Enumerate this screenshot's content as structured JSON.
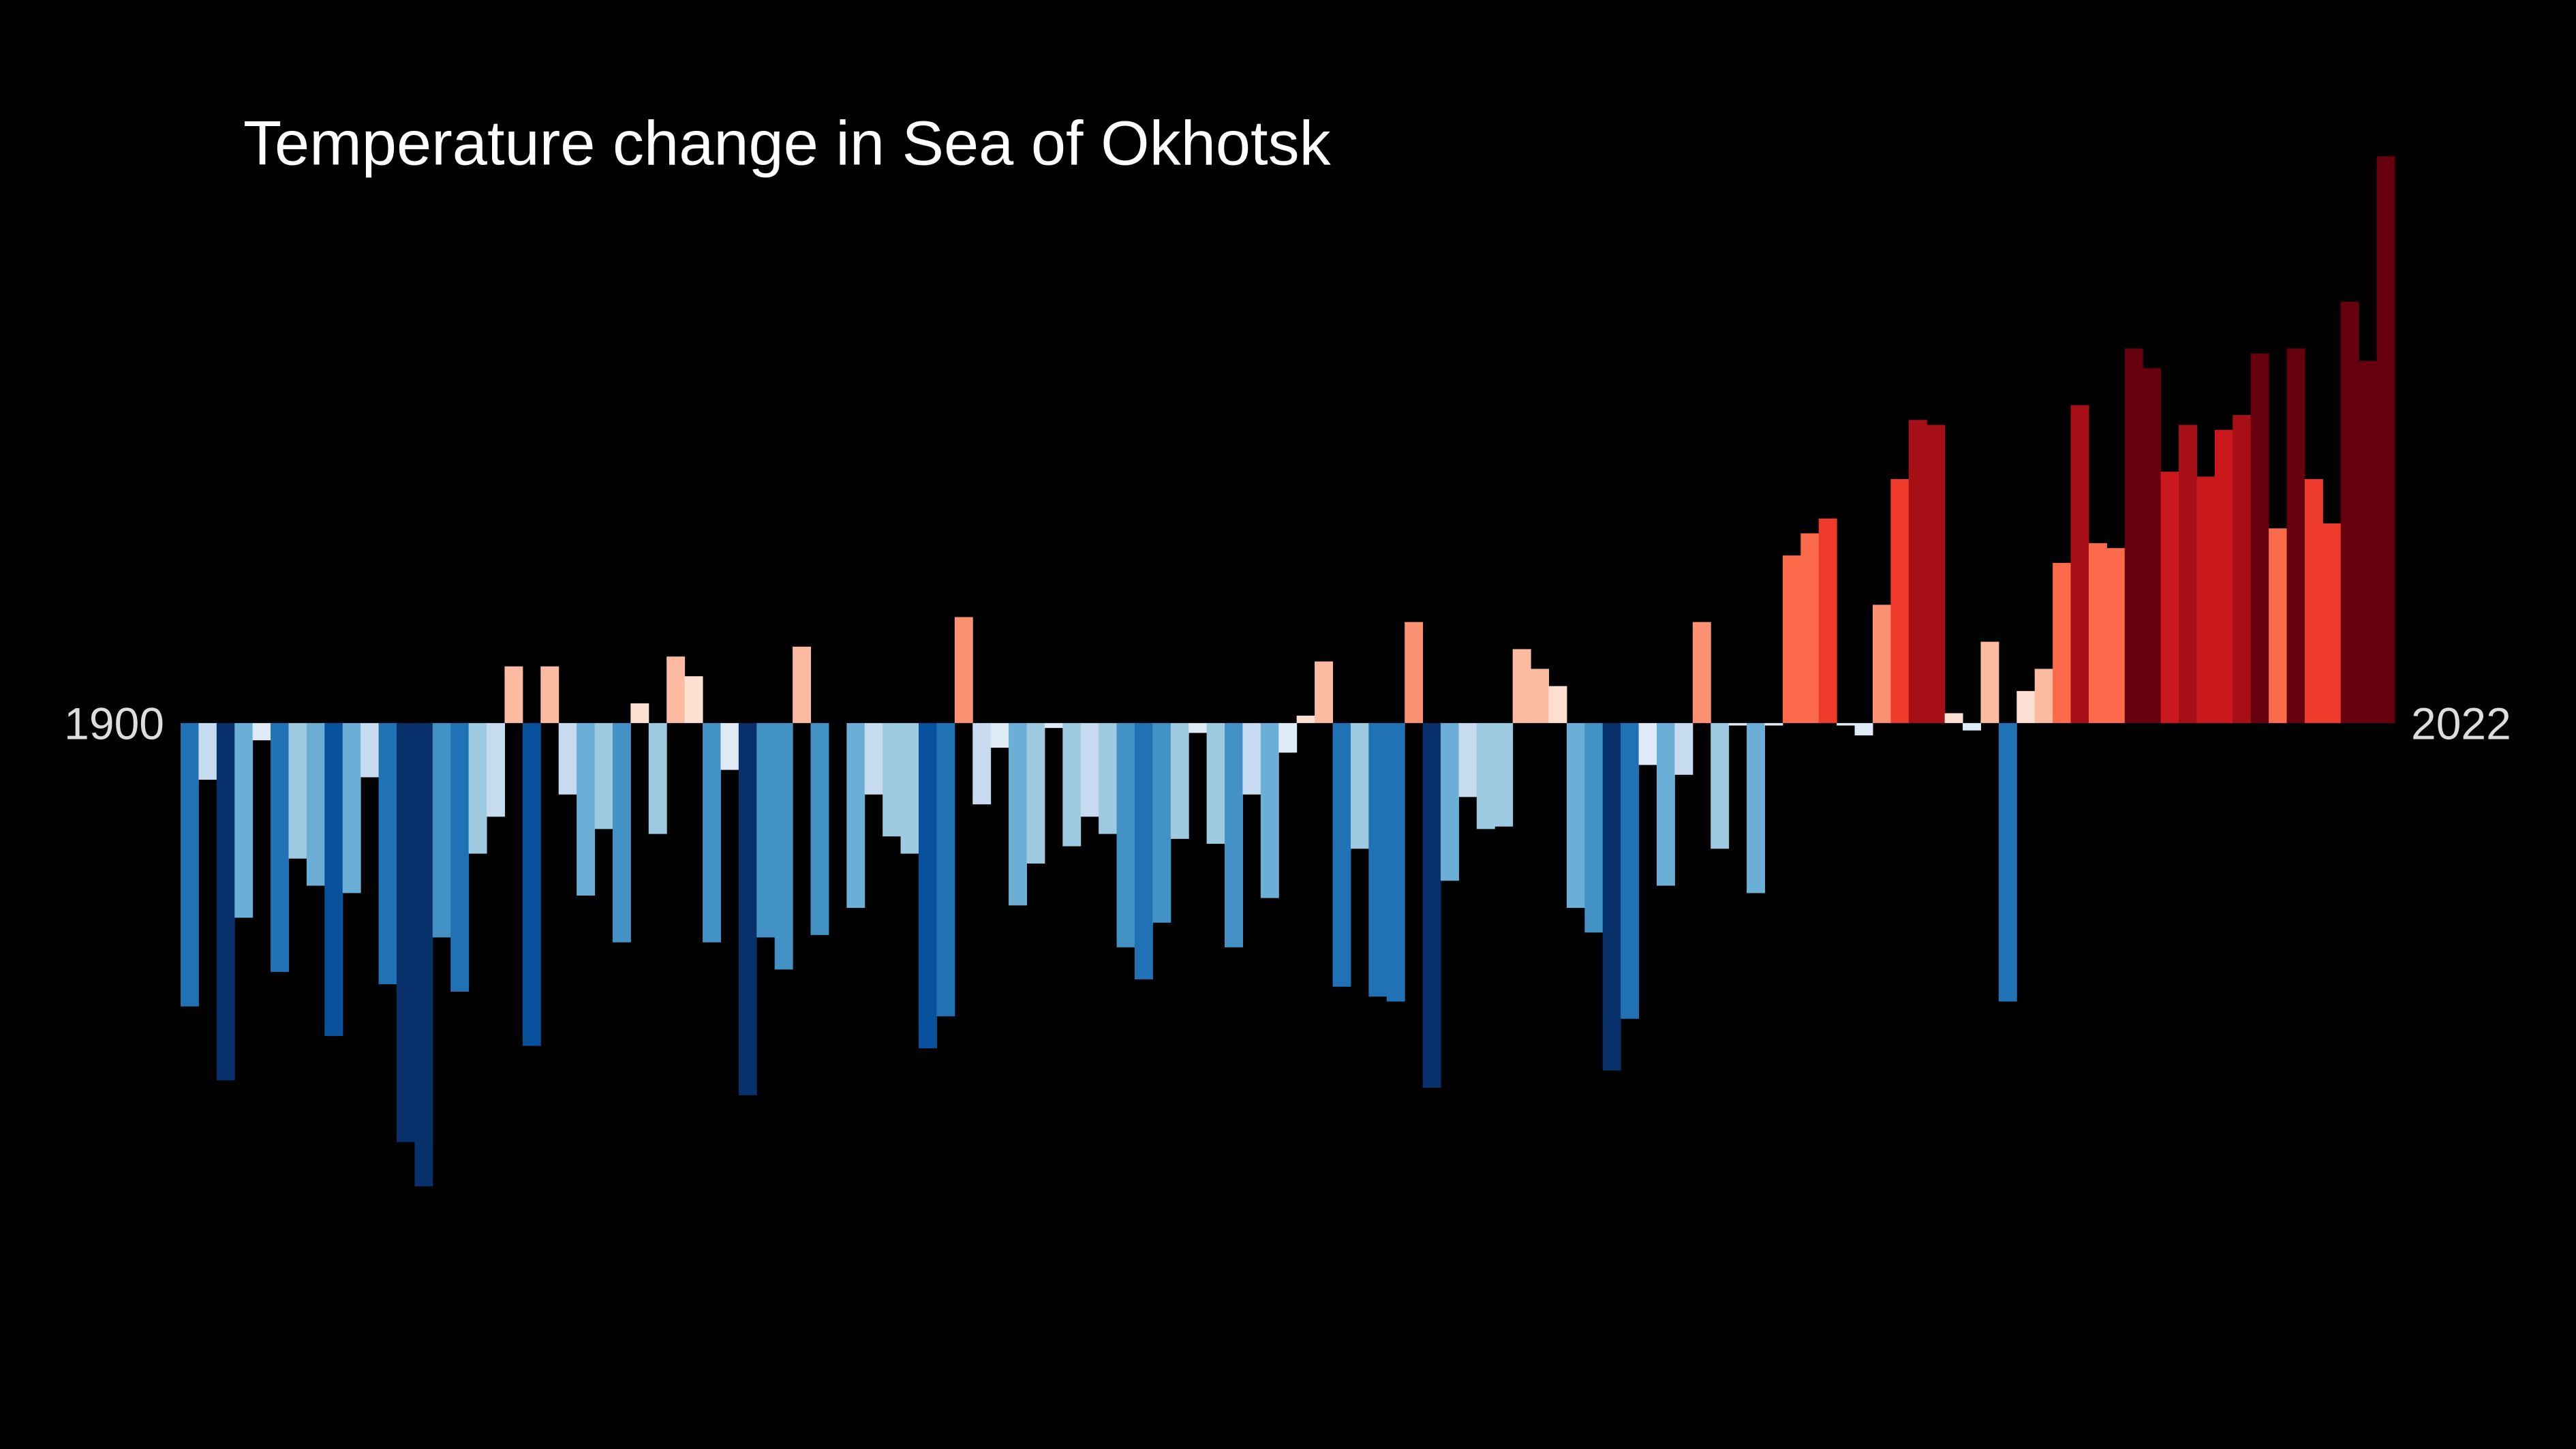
{
  "chart_data": {
    "type": "bar",
    "title": "Temperature change in Sea of Okhotsk",
    "categories": [
      "1900",
      null,
      null,
      null,
      null,
      null,
      null,
      null,
      null,
      null,
      null,
      null,
      null,
      null,
      null,
      null,
      null,
      null,
      null,
      null,
      null,
      null,
      null,
      null,
      null,
      null,
      null,
      null,
      null,
      null,
      null,
      null,
      null,
      null,
      null,
      null,
      null,
      null,
      null,
      null,
      null,
      null,
      null,
      null,
      null,
      null,
      null,
      null,
      null,
      null,
      null,
      null,
      null,
      null,
      null,
      null,
      null,
      null,
      null,
      null,
      null,
      null,
      null,
      null,
      null,
      null,
      null,
      null,
      null,
      null,
      null,
      null,
      null,
      null,
      null,
      null,
      null,
      null,
      null,
      null,
      null,
      null,
      null,
      null,
      null,
      null,
      null,
      null,
      null,
      null,
      null,
      null,
      null,
      null,
      null,
      null,
      null,
      null,
      null,
      null,
      null,
      null,
      null,
      null,
      null,
      null,
      null,
      null,
      null,
      null,
      null,
      null,
      null,
      null,
      null,
      null,
      null,
      null,
      null,
      null,
      null,
      null,
      "2022"
    ],
    "values": [
      -1.15,
      -0.23,
      -1.45,
      -0.79,
      -0.07,
      -1.01,
      -0.55,
      -0.66,
      -1.27,
      -0.69,
      -0.22,
      -1.06,
      -1.7,
      -1.88,
      -0.87,
      -1.09,
      -0.53,
      -0.38,
      0.23,
      -1.31,
      0.23,
      -0.29,
      -0.7,
      -0.43,
      -0.89,
      0.08,
      -0.45,
      0.27,
      0.19,
      -0.89,
      -0.19,
      -1.51,
      -0.87,
      -1.0,
      0.31,
      -0.86,
      0,
      -0.75,
      -0.29,
      -0.46,
      -0.53,
      -1.32,
      -1.19,
      0.43,
      -0.33,
      -0.1,
      -0.74,
      -0.57,
      -0.02,
      -0.5,
      -0.38,
      -0.45,
      -0.91,
      -1.04,
      -0.81,
      -0.47,
      -0.04,
      -0.49,
      -0.91,
      -0.29,
      -0.71,
      -0.12,
      0.03,
      0.25,
      -1.07,
      -0.51,
      -1.11,
      -1.13,
      0.41,
      -1.48,
      -0.64,
      -0.3,
      -0.43,
      -0.42,
      0.3,
      0.22,
      0.15,
      -0.75,
      -0.85,
      -1.41,
      -1.2,
      -0.17,
      -0.66,
      -0.21,
      0.41,
      -0.51,
      -0.01,
      -0.69,
      -0.01,
      0.68,
      0.77,
      0.83,
      -0.01,
      -0.05,
      0.48,
      0.99,
      1.23,
      1.21,
      0.04,
      -0.03,
      0.33,
      -1.13,
      0.13,
      0.22,
      0.65,
      1.29,
      0.73,
      0.71,
      1.52,
      1.44,
      1.02,
      1.21,
      1.0,
      1.19,
      1.25,
      1.5,
      0.79,
      1.52,
      0.99,
      0.81,
      1.71,
      1.47,
      2.3
    ],
    "ylim": [
      -2.0,
      2.5
    ],
    "palette": [
      "#08306b",
      "#08519c",
      "#2171b5",
      "#4292c6",
      "#6baed6",
      "#9ecae1",
      "#c6dbef",
      "#deebf7",
      "#fee0d2",
      "#fcbba1",
      "#fc9272",
      "#fb6a4a",
      "#ef3b2c",
      "#cb181d",
      "#a50f15",
      "#67000d"
    ],
    "clim": [
      -1.6,
      1.6
    ],
    "background": "#000000"
  }
}
